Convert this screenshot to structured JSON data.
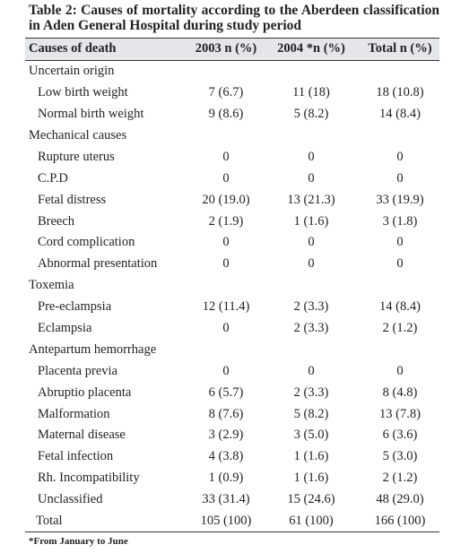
{
  "title": "Table 2: Causes of mortality according to the Aberdeen classification in Aden General Hospital during study period",
  "table": {
    "header": [
      "Causes of death",
      "2003 n (%)",
      "2004 *n (%)",
      "Total n (%)"
    ],
    "rows": [
      {
        "label": "Uncertain origin"
      },
      {
        "label": "Low birth weight",
        "values": [
          "7 (6.7)",
          "11 (18)",
          "18 (10.8)"
        ]
      },
      {
        "label": "Normal birth weight",
        "values": [
          "9 (8.6)",
          "5 (8.2)",
          "14 (8.4)"
        ]
      },
      {
        "label": "Mechanical causes"
      },
      {
        "label": "Rupture uterus",
        "values": [
          "0",
          "0",
          "0"
        ]
      },
      {
        "label": "C.P.D",
        "values": [
          "0",
          "0",
          "0"
        ]
      },
      {
        "label": "Fetal distress",
        "values": [
          "20 (19.0)",
          "13 (21.3)",
          "33 (19.9)"
        ]
      },
      {
        "label": "Breech",
        "values": [
          "2 (1.9)",
          "1 (1.6)",
          "3 (1.8)"
        ]
      },
      {
        "label": "Cord complication",
        "values": [
          "0",
          "0",
          "0"
        ]
      },
      {
        "label": "Abnormal presentation",
        "values": [
          "0",
          "0",
          "0"
        ]
      },
      {
        "label": "Toxemia"
      },
      {
        "label": "Pre-eclampsia",
        "values": [
          "12 (11.4)",
          "2 (3.3)",
          "14 (8.4)"
        ]
      },
      {
        "label": "Eclampsia",
        "values": [
          "0",
          "2 (3.3)",
          "2 (1.2)"
        ]
      },
      {
        "label": "Antepartum hemorrhage"
      },
      {
        "label": "Placenta previa",
        "values": [
          "0",
          "0",
          "0"
        ]
      },
      {
        "label": "Abruptio placenta",
        "values": [
          "6 (5.7)",
          "2 (3.3)",
          "8 (4.8)"
        ]
      },
      {
        "label": "Malformation",
        "values": [
          "8 (7.6)",
          "5 (8.2)",
          "13 (7.8)"
        ]
      },
      {
        "label": "Maternal disease",
        "values": [
          "3 (2.9)",
          "3 (5.0)",
          "6 (3.6)"
        ]
      },
      {
        "label": "Fetal infection",
        "values": [
          "4 (3.8)",
          "1 (1.6)",
          "5 (3.0)"
        ]
      },
      {
        "label": "Rh. Incompatibility",
        "values": [
          "1 (0.9)",
          "1 (1.6)",
          "2 (1.2)"
        ]
      },
      {
        "label": "Unclassified",
        "values": [
          "33 (31.4)",
          "15 (24.6)",
          "48 (29.0)"
        ]
      }
    ],
    "total": {
      "label": "Total",
      "values": [
        "105 (100)",
        "61 (100)",
        "166 (100)"
      ]
    }
  },
  "footnote": "*From January to June"
}
